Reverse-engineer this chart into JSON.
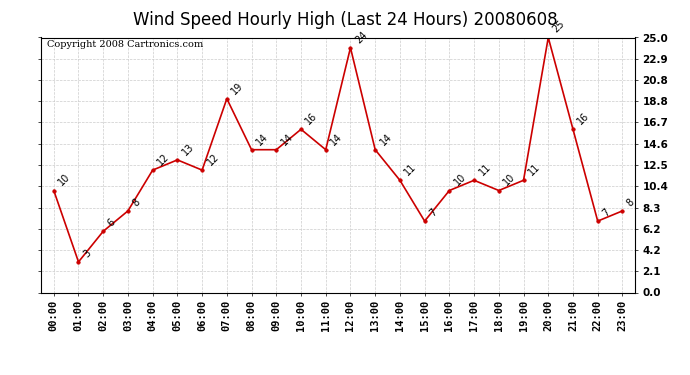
{
  "title": "Wind Speed Hourly High (Last 24 Hours) 20080608",
  "copyright": "Copyright 2008 Cartronics.com",
  "hours": [
    "00:00",
    "01:00",
    "02:00",
    "03:00",
    "04:00",
    "05:00",
    "06:00",
    "07:00",
    "08:00",
    "09:00",
    "10:00",
    "11:00",
    "12:00",
    "13:00",
    "14:00",
    "15:00",
    "16:00",
    "17:00",
    "18:00",
    "19:00",
    "20:00",
    "21:00",
    "22:00",
    "23:00"
  ],
  "values": [
    10,
    3,
    6,
    8,
    12,
    13,
    12,
    19,
    14,
    14,
    16,
    14,
    24,
    14,
    11,
    7,
    10,
    11,
    10,
    11,
    25,
    16,
    7,
    8
  ],
  "line_color": "#cc0000",
  "marker_color": "#cc0000",
  "bg_color": "#ffffff",
  "grid_color": "#cccccc",
  "ylim": [
    0.0,
    25.0
  ],
  "yticks": [
    0.0,
    2.1,
    4.2,
    6.2,
    8.3,
    10.4,
    12.5,
    14.6,
    16.7,
    18.8,
    20.8,
    22.9,
    25.0
  ],
  "ytick_labels": [
    "0.0",
    "2.1",
    "4.2",
    "6.2",
    "8.3",
    "10.4",
    "12.5",
    "14.6",
    "16.7",
    "18.8",
    "20.8",
    "22.9",
    "25.0"
  ],
  "title_fontsize": 12,
  "label_fontsize": 7.5,
  "copyright_fontsize": 7,
  "annot_fontsize": 7
}
